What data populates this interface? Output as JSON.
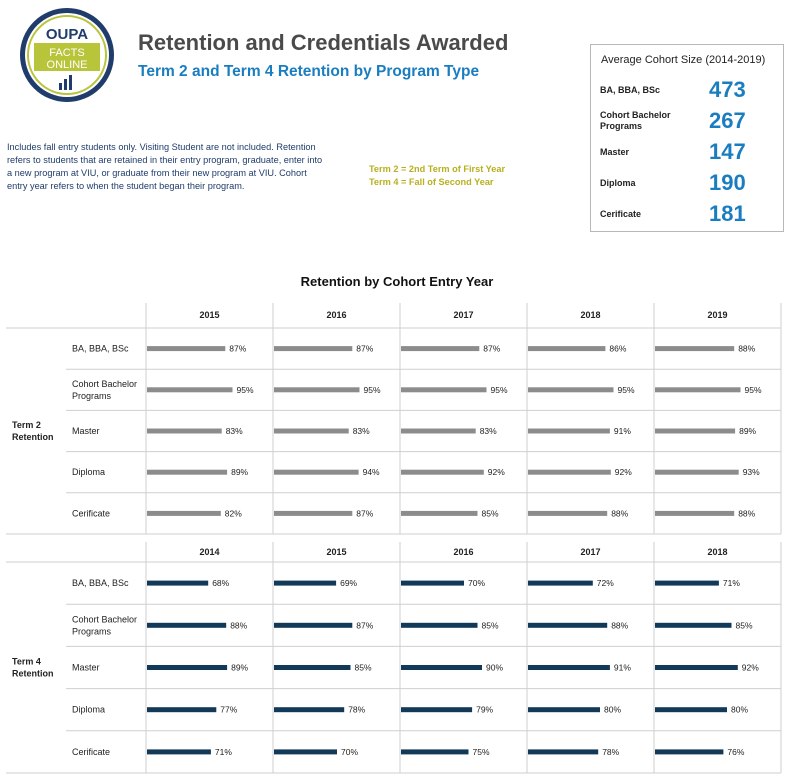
{
  "logo": {
    "line1": "OUPA",
    "line2": "FACTS",
    "line3": "ONLINE"
  },
  "header": {
    "title": "Retention and Credentials Awarded",
    "subtitle": "Term 2 and Term 4 Retention by Program Type"
  },
  "note": "Includes fall entry students only. Visiting Student are not included. Retention refers to students that are retained in their entry program, graduate, enter into a new program at VIU, or graduate from their new program at VIU.  Cohort entry year refers to when the student began their program.",
  "term_legend": [
    "Term 2 = 2nd Term of First Year",
    "Term 4 = Fall of Second Year"
  ],
  "cohort_size": {
    "title": "Average Cohort Size (2014-2019)",
    "rows": [
      {
        "label": "BA, BBA, BSc",
        "value": "473"
      },
      {
        "label": "Cohort Bachelor Programs",
        "value": "267"
      },
      {
        "label": "Master",
        "value": "147"
      },
      {
        "label": "Diploma",
        "value": "190"
      },
      {
        "label": "Cerificate",
        "value": "181"
      }
    ]
  },
  "colors": {
    "term2_bar": "#8c8c8c",
    "term4_bar": "#123a58",
    "accent": "#1a7dc0",
    "note": "#1f3c6b",
    "legend": "#b8b020"
  },
  "chart_data": {
    "type": "bar",
    "title": "Retention by Cohort Entry Year",
    "panels": [
      {
        "name": "Term 2\nRetention",
        "years": [
          "2015",
          "2016",
          "2017",
          "2018",
          "2019"
        ],
        "categories": [
          "BA, BBA, BSc",
          "Cohort Bachelor Programs",
          "Master",
          "Diploma",
          "Cerificate"
        ],
        "values": [
          [
            87,
            87,
            87,
            86,
            88
          ],
          [
            95,
            95,
            95,
            95,
            95
          ],
          [
            83,
            83,
            83,
            91,
            89
          ],
          [
            89,
            94,
            92,
            92,
            93
          ],
          [
            82,
            87,
            85,
            88,
            88
          ]
        ]
      },
      {
        "name": "Term 4\nRetention",
        "years": [
          "2014",
          "2015",
          "2016",
          "2017",
          "2018"
        ],
        "categories": [
          "BA, BBA, BSc",
          "Cohort Bachelor Programs",
          "Master",
          "Diploma",
          "Cerificate"
        ],
        "values": [
          [
            68,
            69,
            70,
            72,
            71
          ],
          [
            88,
            87,
            85,
            88,
            85
          ],
          [
            89,
            85,
            90,
            91,
            92
          ],
          [
            77,
            78,
            79,
            80,
            80
          ],
          [
            71,
            70,
            75,
            78,
            76
          ]
        ]
      }
    ],
    "value_suffix": "%",
    "xlim": [
      0,
      100
    ]
  }
}
